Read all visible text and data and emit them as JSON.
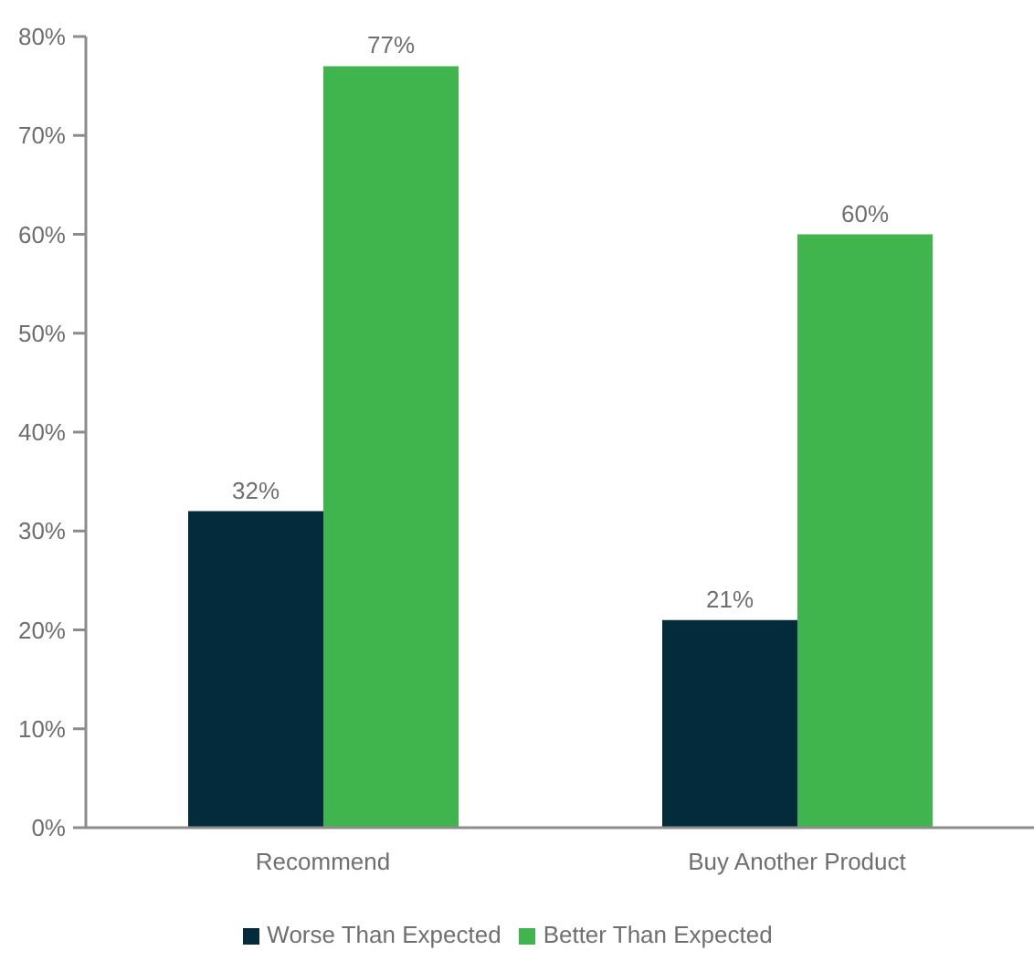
{
  "chart_data": {
    "type": "bar",
    "categories": [
      "Recommend",
      "Buy Another Product"
    ],
    "series": [
      {
        "name": "Worse Than Expected",
        "color": "#032b3c",
        "values": [
          32,
          21
        ],
        "value_labels": [
          "32%",
          "21%"
        ]
      },
      {
        "name": "Better Than Expected",
        "color": "#40b54d",
        "values": [
          77,
          60
        ],
        "value_labels": [
          "77%",
          "60%"
        ]
      }
    ],
    "ylim": [
      0,
      80
    ],
    "yticks": [
      {
        "value": 0,
        "label": "0%"
      },
      {
        "value": 10,
        "label": "10%"
      },
      {
        "value": 20,
        "label": "20%"
      },
      {
        "value": 30,
        "label": "30%"
      },
      {
        "value": 40,
        "label": "40%"
      },
      {
        "value": 50,
        "label": "50%"
      },
      {
        "value": 60,
        "label": "60%"
      },
      {
        "value": 70,
        "label": "70%"
      },
      {
        "value": 80,
        "label": "80%"
      }
    ],
    "grid": false,
    "legend": "bottom"
  }
}
